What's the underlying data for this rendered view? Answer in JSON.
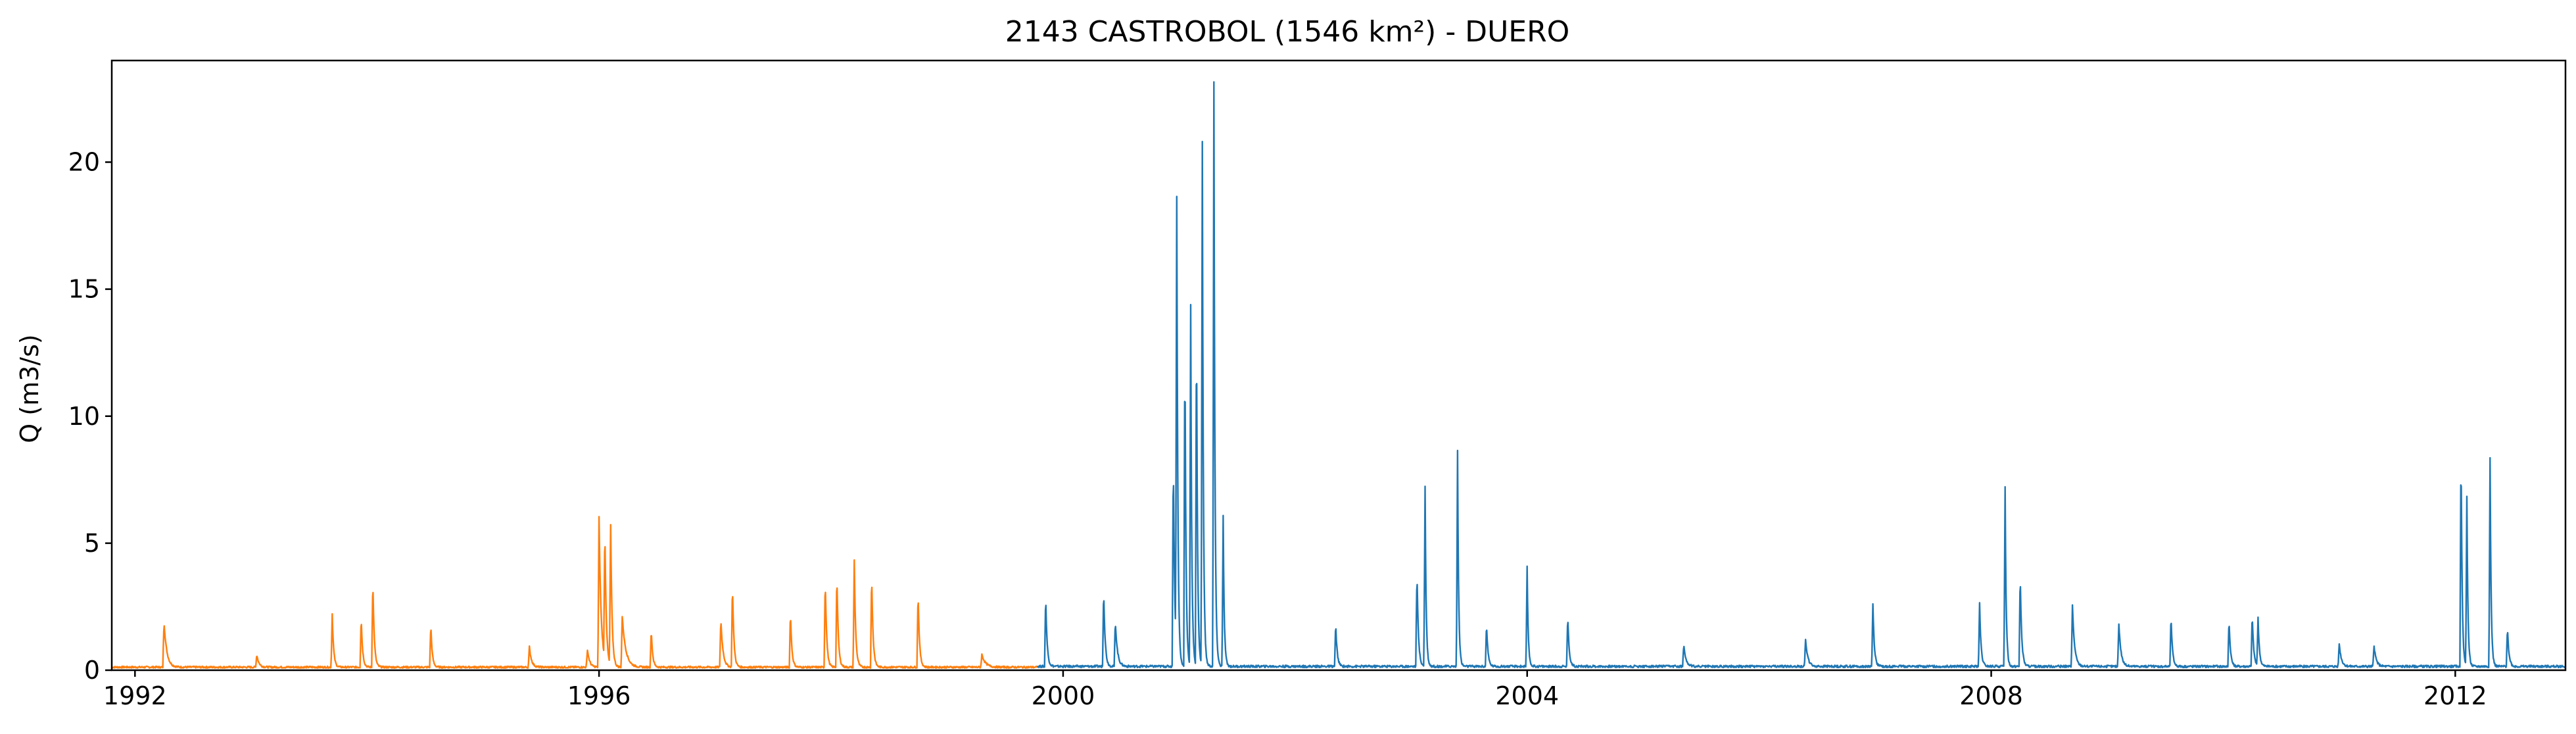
{
  "chart_data": {
    "type": "line",
    "title": "2143 CASTROBOL (1546 km²) - DUERO",
    "xlabel": "",
    "ylabel": "Q (m3/s)",
    "xlim": [
      1991.8,
      2012.95
    ],
    "ylim": [
      0,
      24
    ],
    "grid": false,
    "legend": "none",
    "x_ticks": [
      {
        "value": 1992,
        "label": "1992"
      },
      {
        "value": 1996,
        "label": "1996"
      },
      {
        "value": 2000,
        "label": "2000"
      },
      {
        "value": 2004,
        "label": "2004"
      },
      {
        "value": 2008,
        "label": "2008"
      },
      {
        "value": 2012,
        "label": "2012"
      }
    ],
    "y_ticks": [
      {
        "value": 0,
        "label": "0"
      },
      {
        "value": 5,
        "label": "5"
      },
      {
        "value": 10,
        "label": "10"
      },
      {
        "value": 15,
        "label": "15"
      },
      {
        "value": 20,
        "label": "20"
      }
    ],
    "series": [
      {
        "color": "#ff7f0e",
        "range": [
          1991.8,
          1999.78
        ],
        "baseline": 0.12,
        "peaks": [
          [
            1992.25,
            1.8,
            0.04
          ],
          [
            1993.05,
            0.5,
            0.03
          ],
          [
            1993.7,
            2.1,
            0.02
          ],
          [
            1994.05,
            3.5,
            0.02
          ],
          [
            1993.95,
            2.0,
            0.02
          ],
          [
            1994.55,
            1.7,
            0.02
          ],
          [
            1995.4,
            0.8,
            0.03
          ],
          [
            1995.9,
            0.7,
            0.03
          ],
          [
            1996.0,
            5.9,
            0.03
          ],
          [
            1996.05,
            5.2,
            0.02
          ],
          [
            1996.1,
            5.5,
            0.02
          ],
          [
            1996.2,
            2.0,
            0.05
          ],
          [
            1996.45,
            1.5,
            0.02
          ],
          [
            1997.05,
            1.9,
            0.03
          ],
          [
            1997.15,
            3.3,
            0.02
          ],
          [
            1997.65,
            2.2,
            0.02
          ],
          [
            1997.95,
            3.5,
            0.02
          ],
          [
            1998.05,
            3.7,
            0.02
          ],
          [
            1998.2,
            4.2,
            0.02
          ],
          [
            1998.35,
            3.7,
            0.02
          ],
          [
            1998.75,
            3.0,
            0.02
          ],
          [
            1999.3,
            0.5,
            0.05
          ]
        ]
      },
      {
        "color": "#1f77b4",
        "range": [
          1999.78,
          2012.95
        ],
        "baseline": 0.15,
        "peaks": [
          [
            1999.85,
            2.8,
            0.02
          ],
          [
            2000.35,
            3.1,
            0.02
          ],
          [
            2000.45,
            1.8,
            0.03
          ],
          [
            2000.95,
            8.4,
            0.02
          ],
          [
            2000.98,
            17.8,
            0.015
          ],
          [
            2001.05,
            13.0,
            0.015
          ],
          [
            2001.1,
            14.2,
            0.015
          ],
          [
            2001.15,
            13.8,
            0.015
          ],
          [
            2001.2,
            20.6,
            0.015
          ],
          [
            2001.3,
            23.0,
            0.015
          ],
          [
            2001.38,
            5.9,
            0.015
          ],
          [
            2002.35,
            1.7,
            0.02
          ],
          [
            2003.05,
            3.8,
            0.02
          ],
          [
            2003.12,
            7.1,
            0.015
          ],
          [
            2003.4,
            8.5,
            0.015
          ],
          [
            2003.65,
            1.7,
            0.02
          ],
          [
            2004.0,
            3.9,
            0.015
          ],
          [
            2004.35,
            2.0,
            0.02
          ],
          [
            2005.35,
            0.9,
            0.03
          ],
          [
            2006.4,
            1.1,
            0.03
          ],
          [
            2006.98,
            2.5,
            0.02
          ],
          [
            2007.9,
            2.5,
            0.02
          ],
          [
            2008.12,
            7.1,
            0.015
          ],
          [
            2008.25,
            3.7,
            0.02
          ],
          [
            2008.7,
            2.4,
            0.03
          ],
          [
            2009.1,
            1.7,
            0.03
          ],
          [
            2009.55,
            2.0,
            0.02
          ],
          [
            2010.05,
            1.9,
            0.02
          ],
          [
            2010.25,
            2.1,
            0.02
          ],
          [
            2010.3,
            1.9,
            0.02
          ],
          [
            2011.0,
            0.9,
            0.03
          ],
          [
            2011.3,
            0.8,
            0.03
          ],
          [
            2012.05,
            8.9,
            0.015
          ],
          [
            2012.1,
            6.7,
            0.015
          ],
          [
            2012.3,
            8.2,
            0.015
          ],
          [
            2012.45,
            1.6,
            0.02
          ]
        ]
      }
    ]
  }
}
